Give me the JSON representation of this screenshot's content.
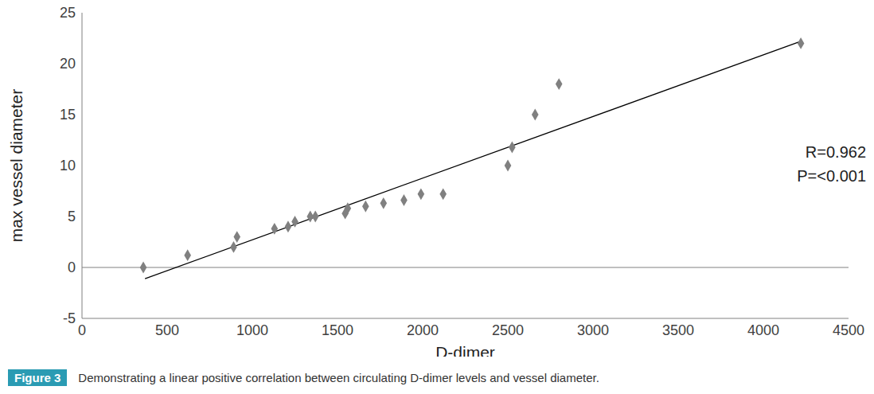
{
  "chart_data": {
    "type": "scatter",
    "x_label": "D-dimer",
    "y_label": "max vessel diameter",
    "x": [
      360,
      620,
      890,
      910,
      1130,
      1210,
      1250,
      1340,
      1370,
      1545,
      1560,
      1665,
      1770,
      1890,
      1990,
      2120,
      2500,
      2525,
      2660,
      2800,
      4220
    ],
    "values": [
      0,
      1.2,
      2,
      3,
      3.8,
      4,
      4.5,
      5,
      5,
      5.3,
      5.8,
      6,
      6.3,
      6.6,
      7.2,
      7.2,
      10,
      11.8,
      15,
      18,
      22
    ],
    "color": "#808080",
    "marker": "diamond",
    "trendline": {
      "x": [
        370,
        4220
      ],
      "y": [
        -1.1,
        22.2
      ],
      "color": "#000000"
    },
    "xlim": [
      0,
      4500
    ],
    "xticks": [
      0,
      500,
      1000,
      1500,
      2000,
      2500,
      3000,
      3500,
      4000,
      4500
    ],
    "ylim": [
      -5,
      25
    ],
    "yticks": [
      -5,
      0,
      5,
      10,
      15,
      20,
      25
    ],
    "grid": false,
    "annotations": [
      "R=0.962",
      "P=<0.001"
    ],
    "caption": {
      "label": "Figure 3",
      "text": "Demonstrating a linear positive correlation between circulating D-dimer levels and vessel diameter."
    }
  }
}
